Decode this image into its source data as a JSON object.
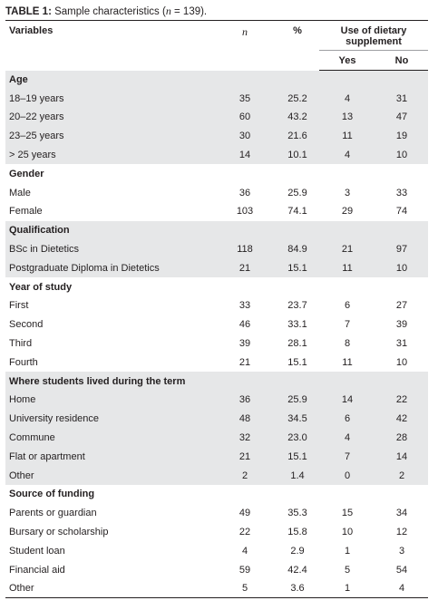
{
  "title": {
    "label": "TABLE 1:",
    "text": " Sample characteristics (",
    "n": "n",
    "rest": " = 139)."
  },
  "header": {
    "variables": "Variables",
    "n": "n",
    "percent": "%",
    "supplement": "Use of dietary supplement",
    "yes": "Yes",
    "no": "No"
  },
  "sections": [
    {
      "label": "Age",
      "rows": [
        [
          "18–19 years",
          "35",
          "25.2",
          "4",
          "31"
        ],
        [
          "20–22 years",
          "60",
          "43.2",
          "13",
          "47"
        ],
        [
          "23–25 years",
          "30",
          "21.6",
          "11",
          "19"
        ],
        [
          "> 25 years",
          "14",
          "10.1",
          "4",
          "10"
        ]
      ]
    },
    {
      "label": "Gender",
      "rows": [
        [
          "Male",
          "36",
          "25.9",
          "3",
          "33"
        ],
        [
          "Female",
          "103",
          "74.1",
          "29",
          "74"
        ]
      ]
    },
    {
      "label": "Qualification",
      "rows": [
        [
          "BSc in Dietetics",
          "118",
          "84.9",
          "21",
          "97"
        ],
        [
          "Postgraduate Diploma in Dietetics",
          "21",
          "15.1",
          "11",
          "10"
        ]
      ]
    },
    {
      "label": "Year of study",
      "rows": [
        [
          "First",
          "33",
          "23.7",
          "6",
          "27"
        ],
        [
          "Second",
          "46",
          "33.1",
          "7",
          "39"
        ],
        [
          "Third",
          "39",
          "28.1",
          "8",
          "31"
        ],
        [
          "Fourth",
          "21",
          "15.1",
          "11",
          "10"
        ]
      ]
    },
    {
      "label": "Where students lived during the term",
      "rows": [
        [
          "Home",
          "36",
          "25.9",
          "14",
          "22"
        ],
        [
          "University residence",
          "48",
          "34.5",
          "6",
          "42"
        ],
        [
          "Commune",
          "32",
          "23.0",
          "4",
          "28"
        ],
        [
          "Flat or apartment",
          "21",
          "15.1",
          "7",
          "14"
        ],
        [
          "Other",
          "2",
          "1.4",
          "0",
          "2"
        ]
      ]
    },
    {
      "label": "Source of funding",
      "rows": [
        [
          "Parents or guardian",
          "49",
          "35.3",
          "15",
          "34"
        ],
        [
          "Bursary or scholarship",
          "22",
          "15.8",
          "10",
          "12"
        ],
        [
          "Student loan",
          "4",
          "2.9",
          "1",
          "3"
        ],
        [
          "Financial aid",
          "59",
          "42.4",
          "5",
          "54"
        ],
        [
          "Other",
          "5",
          "3.6",
          "1",
          "4"
        ]
      ]
    }
  ]
}
